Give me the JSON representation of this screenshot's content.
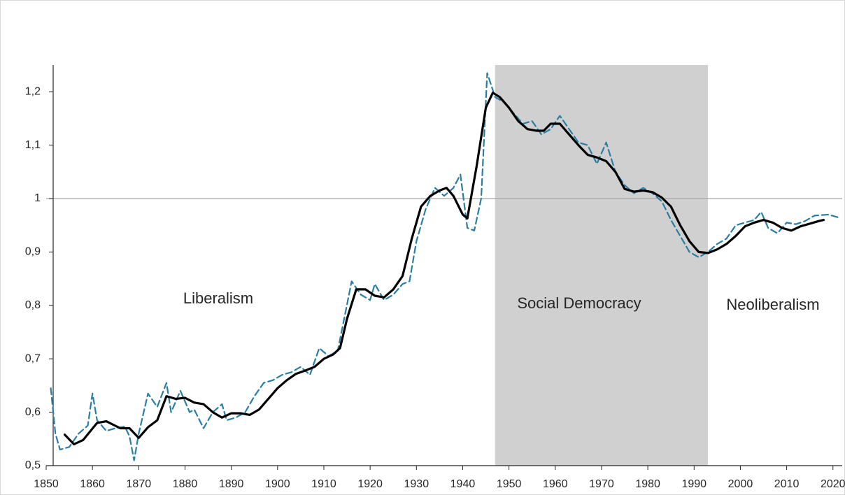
{
  "chart_data": {
    "type": "line",
    "xlim": [
      1850,
      2022
    ],
    "xticks": [
      1850,
      1860,
      1870,
      1880,
      1890,
      1900,
      1910,
      1920,
      1930,
      1940,
      1950,
      1960,
      1970,
      1980,
      1990,
      2000,
      2010,
      2020
    ],
    "ylim": [
      0.5,
      1.25
    ],
    "yticks": [
      {
        "value": 0.5,
        "label": "0,5"
      },
      {
        "value": 0.6,
        "label": "0,6"
      },
      {
        "value": 0.7,
        "label": "0,7"
      },
      {
        "value": 0.8,
        "label": "0,8"
      },
      {
        "value": 0.9,
        "label": "0,9"
      },
      1,
      {
        "value": 1.1,
        "label": "1,1"
      },
      {
        "value": 1.2,
        "label": "1,2"
      }
    ],
    "reference_line": 1,
    "shaded_span": [
      1947,
      1993
    ],
    "shade_color": "#d0d0d0",
    "annotations": [
      "Liberalism",
      "Social Democracy",
      "Neoliberalism"
    ],
    "series": [
      {
        "color": "#2a7ea6",
        "style": "dashed",
        "x": [
          1851,
          1852,
          1853,
          1855,
          1857,
          1859,
          1860,
          1861,
          1863,
          1865,
          1867,
          1868,
          1869,
          1870,
          1872,
          1874,
          1876,
          1877,
          1879,
          1881,
          1882,
          1884,
          1886,
          1888,
          1889,
          1891,
          1893,
          1895,
          1897,
          1899,
          1901,
          1903,
          1905,
          1907,
          1909,
          1911,
          1913,
          1914.5,
          1916,
          1918,
          1920,
          1921,
          1923,
          1925,
          1927,
          1928.5,
          1930,
          1932,
          1934,
          1936,
          1938,
          1939.5,
          1941,
          1942.5,
          1944,
          1945.3,
          1947,
          1949,
          1951,
          1953,
          1955,
          1957,
          1959,
          1961,
          1963,
          1965,
          1967,
          1969,
          1971,
          1973,
          1975,
          1977,
          1979,
          1981,
          1983,
          1985,
          1987,
          1989,
          1991,
          1993,
          1995,
          1997,
          1999,
          2001,
          2003,
          2004.5,
          2006,
          2008,
          2010,
          2012,
          2014,
          2016,
          2019,
          2021
        ],
        "values": [
          0.645,
          0.56,
          0.53,
          0.535,
          0.56,
          0.575,
          0.635,
          0.585,
          0.565,
          0.57,
          0.573,
          0.555,
          0.51,
          0.56,
          0.635,
          0.61,
          0.655,
          0.6,
          0.64,
          0.6,
          0.605,
          0.57,
          0.6,
          0.615,
          0.585,
          0.59,
          0.6,
          0.63,
          0.655,
          0.66,
          0.67,
          0.675,
          0.685,
          0.67,
          0.72,
          0.705,
          0.715,
          0.78,
          0.845,
          0.82,
          0.81,
          0.84,
          0.81,
          0.82,
          0.84,
          0.845,
          0.92,
          0.98,
          1.02,
          1.005,
          1.02,
          1.045,
          0.945,
          0.94,
          1.0,
          1.235,
          1.19,
          1.18,
          1.16,
          1.14,
          1.145,
          1.12,
          1.13,
          1.155,
          1.13,
          1.105,
          1.1,
          1.065,
          1.105,
          1.05,
          1.025,
          1.01,
          1.02,
          1.01,
          0.995,
          0.96,
          0.93,
          0.9,
          0.89,
          0.9,
          0.915,
          0.925,
          0.95,
          0.955,
          0.96,
          0.975,
          0.945,
          0.935,
          0.955,
          0.952,
          0.958,
          0.968,
          0.97,
          0.965
        ]
      },
      {
        "color": "#000000",
        "style": "solid",
        "x": [
          1854,
          1856,
          1858,
          1861,
          1863,
          1866,
          1868,
          1870,
          1872,
          1874,
          1876,
          1878,
          1880,
          1882,
          1884,
          1886,
          1888,
          1890,
          1892,
          1894,
          1896,
          1898,
          1900,
          1902,
          1904,
          1906,
          1908,
          1910,
          1912,
          1913.5,
          1915,
          1917,
          1919,
          1921,
          1923,
          1925,
          1927,
          1929,
          1931,
          1933,
          1935,
          1936.5,
          1938,
          1940,
          1941,
          1943,
          1945,
          1946.5,
          1948,
          1950,
          1952,
          1954,
          1956,
          1957.5,
          1959,
          1961,
          1963,
          1965,
          1967,
          1969,
          1971,
          1973,
          1975,
          1977,
          1979,
          1981,
          1983,
          1985,
          1987,
          1989,
          1991,
          1993,
          1995,
          1997,
          1999,
          2001,
          2003,
          2005,
          2007,
          2009,
          2011,
          2013,
          2015,
          2017,
          2018
        ],
        "values": [
          0.558,
          0.54,
          0.548,
          0.58,
          0.583,
          0.57,
          0.57,
          0.552,
          0.572,
          0.585,
          0.63,
          0.625,
          0.627,
          0.618,
          0.615,
          0.6,
          0.59,
          0.598,
          0.598,
          0.595,
          0.605,
          0.625,
          0.645,
          0.66,
          0.672,
          0.678,
          0.685,
          0.7,
          0.708,
          0.72,
          0.775,
          0.83,
          0.83,
          0.818,
          0.815,
          0.83,
          0.855,
          0.925,
          0.985,
          1.005,
          1.015,
          1.02,
          1.005,
          0.97,
          0.963,
          1.06,
          1.17,
          1.198,
          1.19,
          1.17,
          1.145,
          1.13,
          1.127,
          1.127,
          1.14,
          1.14,
          1.12,
          1.1,
          1.082,
          1.077,
          1.07,
          1.05,
          1.018,
          1.013,
          1.015,
          1.012,
          1.002,
          0.985,
          0.95,
          0.92,
          0.9,
          0.898,
          0.905,
          0.915,
          0.93,
          0.948,
          0.955,
          0.96,
          0.955,
          0.945,
          0.94,
          0.948,
          0.953,
          0.958,
          0.96
        ]
      }
    ]
  }
}
